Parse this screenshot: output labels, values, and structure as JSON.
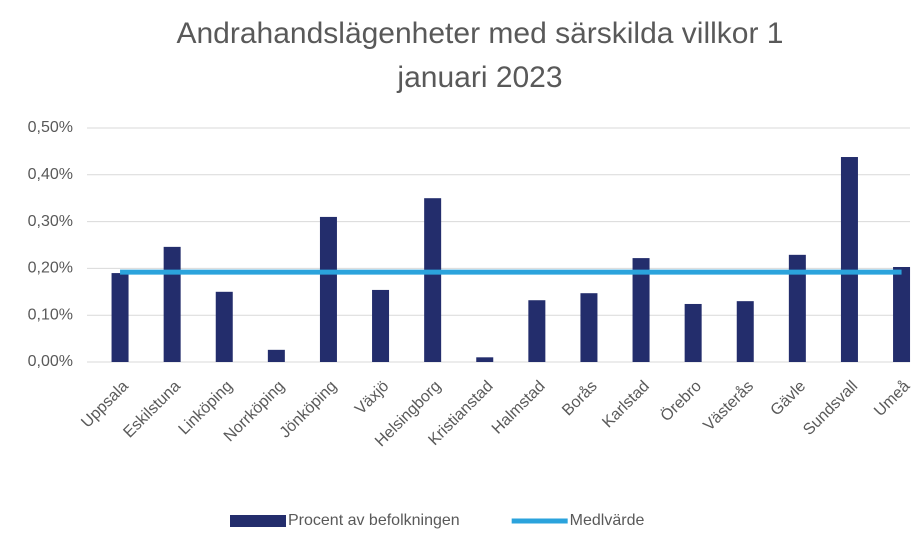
{
  "chart_data": {
    "type": "bar",
    "title": "Andrahandslägenheter med särskilda villkor 1 januari 2023",
    "categories": [
      "Uppsala",
      "Eskilstuna",
      "Linköping",
      "Norrköping",
      "Jönköping",
      "Växjö",
      "Helsingborg",
      "Kristianstad",
      "Halmstad",
      "Borås",
      "Karlstad",
      "Örebro",
      "Västerås",
      "Gävle",
      "Sundsvall",
      "Umeå"
    ],
    "series": [
      {
        "name": "Procent av befolkningen",
        "type": "bar",
        "color": "#232d6c",
        "values": [
          0.19,
          0.246,
          0.15,
          0.026,
          0.31,
          0.154,
          0.35,
          0.01,
          0.132,
          0.147,
          0.222,
          0.124,
          0.13,
          0.229,
          0.438,
          0.203
        ]
      },
      {
        "name": "Medlvärde",
        "type": "line",
        "color": "#2ba3dc",
        "values": [
          0.192,
          0.192,
          0.192,
          0.192,
          0.192,
          0.192,
          0.192,
          0.192,
          0.192,
          0.192,
          0.192,
          0.192,
          0.192,
          0.192,
          0.192,
          0.192
        ]
      }
    ],
    "ylim": [
      0,
      0.5
    ],
    "yticks": [
      {
        "value": 0,
        "label": "0,00%"
      },
      {
        "value": 0.1,
        "label": "0,10%"
      },
      {
        "value": 0.2,
        "label": "0,20%"
      },
      {
        "value": 0.3,
        "label": "0,30%"
      },
      {
        "value": 0.4,
        "label": "0,40%"
      },
      {
        "value": 0.5,
        "label": "0,50%"
      }
    ],
    "grid": true,
    "legend": "bottom"
  }
}
